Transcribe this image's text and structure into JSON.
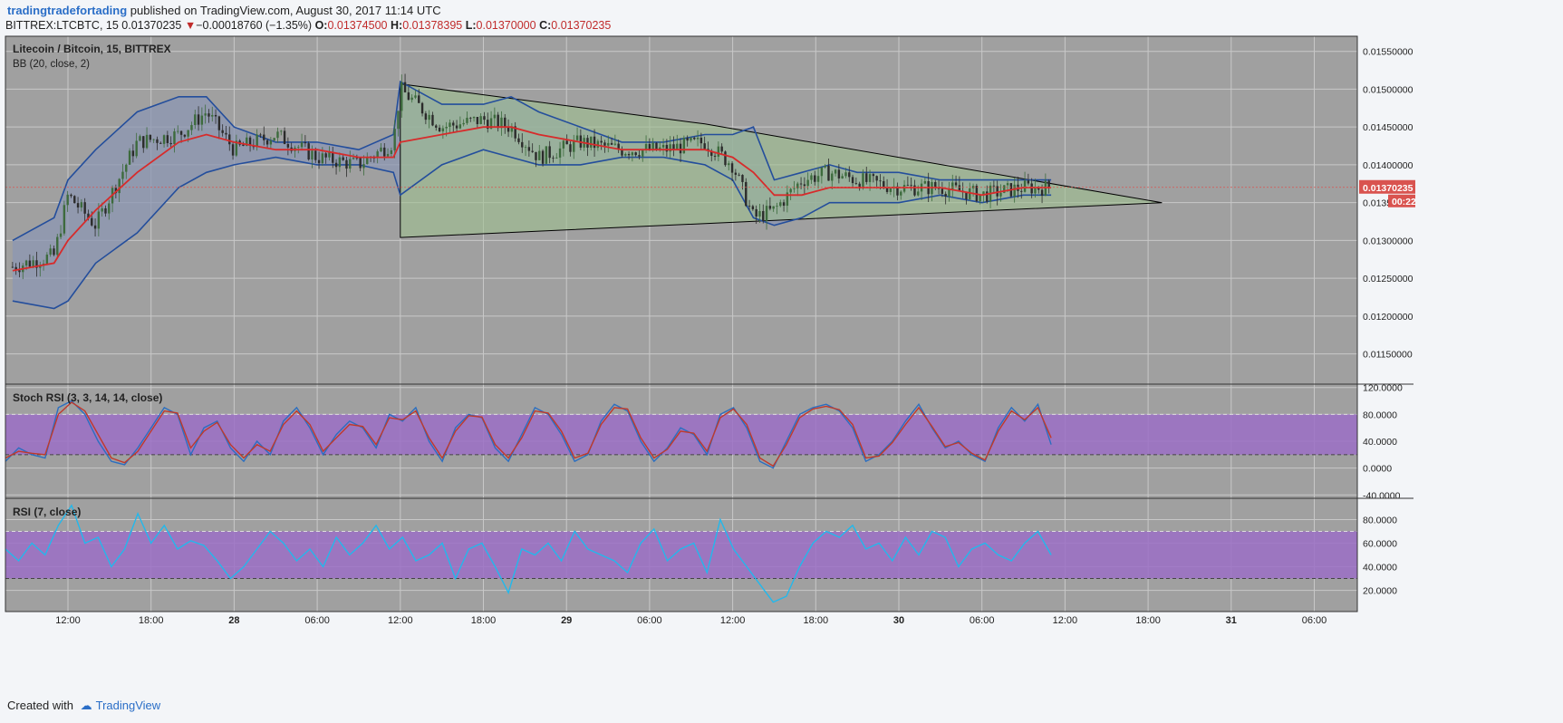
{
  "header": {
    "publisher": "tradingtradefortading",
    "published_text": "published on TradingView.com, August 30, 2017 11:14 UTC",
    "symbol": "BITTREX:LTCBTC, 15",
    "last": "0.01370235",
    "change_arrow": "▼",
    "change": "−0.00018760 (−1.35%)",
    "o_label": "O:",
    "o": "0.01374500",
    "h_label": "H:",
    "h": "0.01378395",
    "l_label": "L:",
    "l": "0.01370000",
    "c_label": "C:",
    "c": "0.01370235"
  },
  "footer": {
    "created_with": "Created with",
    "brand": "TradingView"
  },
  "colors": {
    "plot_bg": "#a0a0a0",
    "grid": "#c8c8c8",
    "candle_up": "#3d6b3d",
    "candle_down": "#2b2b2b",
    "bb_band": "#244e9c",
    "bb_fill": "#8c97b3",
    "bb_basis": "#d72b2b",
    "triangle_fill": "#9fbf90",
    "stoch_k": "#2b6ec0",
    "stoch_d": "#c0392b",
    "rsi": "#22b8ec",
    "osc_band": "#9b6fc6",
    "price_tag": "#d9534f"
  },
  "chart_data": [
    {
      "type": "candlestick",
      "title": "Litecoin / Bitcoin, 15, BITTREX",
      "indicator": "BB (20, close, 2)",
      "ylim": [
        0.0111,
        0.0157
      ],
      "y_ticks": [
        "0.01150000",
        "0.01200000",
        "0.01250000",
        "0.01300000",
        "0.01350000",
        "0.01400000",
        "0.01450000",
        "0.01500000",
        "0.01550000"
      ],
      "x_ticks": [
        "12:00",
        "18:00",
        "28",
        "06:00",
        "12:00",
        "18:00",
        "29",
        "06:00",
        "12:00",
        "18:00",
        "30",
        "06:00",
        "12:00",
        "18:00",
        "31",
        "06:00"
      ],
      "last_price_label": "0.01370235",
      "countdown_label": "00:22",
      "price_path": {
        "x": [
          "Aug 27 08:00",
          "Aug 27 11:00",
          "Aug 27 12:00",
          "Aug 27 14:00",
          "Aug 27 17:00",
          "Aug 27 20:00",
          "Aug 27 22:00",
          "Aug 28 00:00",
          "Aug 28 03:00",
          "Aug 28 06:00",
          "Aug 28 09:00",
          "Aug 28 11:30",
          "Aug 28 12:00",
          "Aug 28 15:00",
          "Aug 28 18:00",
          "Aug 28 20:00",
          "Aug 28 22:00",
          "Aug 29 01:00",
          "Aug 29 04:00",
          "Aug 29 07:00",
          "Aug 29 10:00",
          "Aug 29 12:00",
          "Aug 29 13:30",
          "Aug 29 15:00",
          "Aug 29 17:00",
          "Aug 29 19:00",
          "Aug 29 21:00",
          "Aug 30 00:00",
          "Aug 30 03:00",
          "Aug 30 06:00",
          "Aug 30 09:00",
          "Aug 30 11:00"
        ],
        "close": [
          0.01265,
          0.0128,
          0.0136,
          0.0132,
          0.0143,
          0.0144,
          0.0147,
          0.0142,
          0.0144,
          0.0141,
          0.014,
          0.0143,
          0.015,
          0.0145,
          0.0146,
          0.0145,
          0.0141,
          0.0143,
          0.0142,
          0.0142,
          0.0143,
          0.014,
          0.0133,
          0.0134,
          0.0138,
          0.0139,
          0.0138,
          0.0137,
          0.0137,
          0.0136,
          0.0137,
          0.0137
        ]
      },
      "bb_upper": [
        0.013,
        0.0133,
        0.0138,
        0.0142,
        0.0147,
        0.0149,
        0.0149,
        0.0145,
        0.0143,
        0.0143,
        0.0142,
        0.0144,
        0.0151,
        0.0148,
        0.0148,
        0.0149,
        0.0147,
        0.0145,
        0.0143,
        0.0143,
        0.0144,
        0.0144,
        0.0145,
        0.0138,
        0.0139,
        0.014,
        0.0139,
        0.0139,
        0.0138,
        0.0138,
        0.0138,
        0.0138
      ],
      "bb_basis": [
        0.0126,
        0.0127,
        0.013,
        0.0134,
        0.0139,
        0.0143,
        0.0144,
        0.0143,
        0.0142,
        0.0142,
        0.0141,
        0.0141,
        0.0143,
        0.0144,
        0.0145,
        0.0145,
        0.0144,
        0.0143,
        0.0142,
        0.0142,
        0.0142,
        0.0141,
        0.0139,
        0.0136,
        0.0136,
        0.0137,
        0.0137,
        0.0137,
        0.0137,
        0.0136,
        0.0137,
        0.0137
      ],
      "bb_lower": [
        0.0122,
        0.0121,
        0.0122,
        0.0127,
        0.0131,
        0.0137,
        0.0139,
        0.014,
        0.0141,
        0.014,
        0.014,
        0.0139,
        0.0136,
        0.014,
        0.0142,
        0.0141,
        0.014,
        0.014,
        0.0141,
        0.0141,
        0.014,
        0.0138,
        0.0133,
        0.0132,
        0.0133,
        0.0135,
        0.0135,
        0.0135,
        0.0136,
        0.0135,
        0.0136,
        0.0136
      ],
      "triangle": {
        "x": [
          "Aug 28 12:00",
          "Aug 29 10:00",
          "Aug 30 19:00",
          "Aug 28 12:00"
        ],
        "y": [
          0.01507,
          0.01454,
          0.0135,
          0.01304
        ]
      }
    },
    {
      "type": "line",
      "title": "Stoch RSI (3, 3, 14, 14, close)",
      "ylim": [
        -45,
        125
      ],
      "y_ticks": [
        "120.0000",
        "80.0000",
        "40.0000",
        "0.0000",
        "-40.0000"
      ],
      "band": [
        20,
        80
      ],
      "series": [
        {
          "name": "K",
          "values": [
            10,
            30,
            20,
            15,
            90,
            100,
            80,
            40,
            10,
            5,
            30,
            60,
            90,
            80,
            20,
            60,
            70,
            30,
            10,
            40,
            20,
            70,
            90,
            60,
            20,
            50,
            70,
            60,
            30,
            80,
            70,
            90,
            40,
            10,
            60,
            80,
            75,
            30,
            10,
            50,
            90,
            80,
            50,
            10,
            20,
            70,
            95,
            85,
            40,
            10,
            30,
            60,
            50,
            20,
            80,
            90,
            60,
            10,
            0,
            40,
            80,
            90,
            95,
            85,
            60,
            10,
            20,
            40,
            70,
            95,
            60,
            30,
            40,
            20,
            10,
            60,
            90,
            70,
            95,
            35
          ]
        },
        {
          "name": "D",
          "values": [
            15,
            25,
            22,
            20,
            80,
            98,
            85,
            50,
            15,
            8,
            25,
            55,
            85,
            82,
            30,
            55,
            68,
            35,
            15,
            35,
            25,
            65,
            85,
            65,
            25,
            45,
            65,
            62,
            35,
            75,
            72,
            85,
            45,
            15,
            55,
            78,
            76,
            35,
            15,
            45,
            85,
            82,
            55,
            15,
            22,
            65,
            90,
            88,
            45,
            15,
            28,
            55,
            52,
            25,
            75,
            88,
            65,
            15,
            3,
            35,
            75,
            88,
            92,
            87,
            65,
            15,
            18,
            38,
            65,
            90,
            62,
            32,
            38,
            22,
            12,
            55,
            85,
            72,
            90,
            45
          ]
        }
      ]
    },
    {
      "type": "line",
      "title": "RSI (7, close)",
      "ylim": [
        2,
        98
      ],
      "y_ticks": [
        "80.0000",
        "60.0000",
        "40.0000",
        "20.0000"
      ],
      "band": [
        30,
        70
      ],
      "series": [
        {
          "name": "RSI",
          "values": [
            55,
            45,
            60,
            50,
            75,
            92,
            60,
            65,
            40,
            55,
            85,
            60,
            75,
            55,
            62,
            58,
            45,
            30,
            40,
            55,
            70,
            60,
            45,
            55,
            40,
            65,
            50,
            60,
            75,
            55,
            65,
            45,
            50,
            60,
            30,
            55,
            60,
            40,
            18,
            55,
            50,
            60,
            45,
            70,
            55,
            50,
            45,
            35,
            60,
            72,
            45,
            55,
            60,
            35,
            80,
            55,
            40,
            25,
            10,
            15,
            40,
            60,
            70,
            65,
            75,
            55,
            60,
            45,
            65,
            50,
            70,
            65,
            40,
            55,
            60,
            50,
            45,
            60,
            70,
            50
          ]
        }
      ]
    }
  ]
}
